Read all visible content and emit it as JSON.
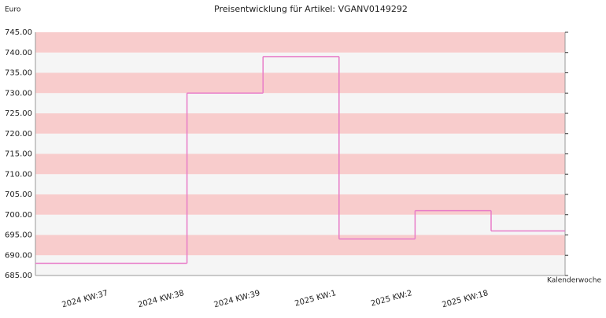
{
  "chart_data": {
    "type": "step",
    "title": "Preisentwicklung für Artikel: VGANV0149292",
    "y_label": "Euro",
    "x_label": "Kalenderwoche",
    "categories": [
      "2024 KW:37",
      "2024 KW:38",
      "2024 KW:39",
      "2025 KW:1",
      "2025 KW:2",
      "2025 KW:18"
    ],
    "values": [
      688,
      730,
      739,
      694,
      701,
      696
    ],
    "color": "#e87cc8",
    "band_colors": [
      "#f5f5f5",
      "#f8cccc"
    ],
    "ylim": [
      685,
      745
    ],
    "yticks": [
      {
        "value": 685,
        "label": "685.00"
      },
      {
        "value": 690,
        "label": "690.00"
      },
      {
        "value": 695,
        "label": "695.00"
      },
      {
        "value": 700,
        "label": "700.00"
      },
      {
        "value": 705,
        "label": "705.00"
      },
      {
        "value": 710,
        "label": "710.00"
      },
      {
        "value": 715,
        "label": "715.00"
      },
      {
        "value": 720,
        "label": "720.00"
      },
      {
        "value": 725,
        "label": "725.00"
      },
      {
        "value": 730,
        "label": "730.00"
      },
      {
        "value": 735,
        "label": "735.00"
      },
      {
        "value": 740,
        "label": "740.00"
      },
      {
        "value": 745,
        "label": "745.00"
      }
    ]
  }
}
